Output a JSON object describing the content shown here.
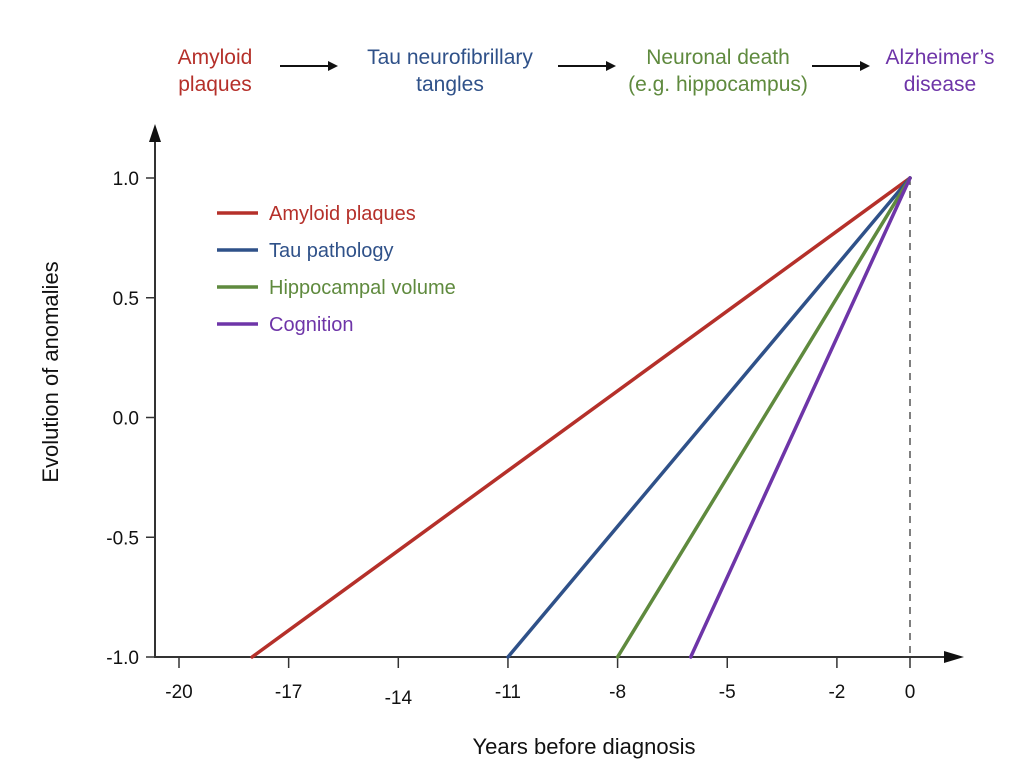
{
  "flow": {
    "stages": [
      {
        "lines": [
          "Amyloid",
          "plaques"
        ],
        "color": "#b5302a"
      },
      {
        "lines": [
          "Tau neurofibrillary",
          "tangles"
        ],
        "color": "#2f5189"
      },
      {
        "lines": [
          "Neuronal death",
          "(e.g. hippocampus)"
        ],
        "color": "#5f8a3e"
      },
      {
        "lines": [
          "Alzheimer’s",
          "disease"
        ],
        "color": "#6e35a8"
      }
    ],
    "arrow_icon": "right-arrow-icon"
  },
  "chart_data": {
    "type": "line",
    "title": "",
    "xlabel": "Years before diagnosis",
    "ylabel": "Evolution of anomalies",
    "xlim": [
      -21,
      1
    ],
    "ylim": [
      -1.0,
      1.0
    ],
    "xticks": [
      -20,
      -17,
      -14,
      -11,
      -8,
      -5,
      -2,
      0
    ],
    "xtick_labels": [
      "-20",
      "-17",
      "-14",
      "-11",
      "-8",
      "-5",
      "-2",
      "0"
    ],
    "yticks": [
      1.0,
      0.5,
      0.0,
      -0.5,
      -1.0
    ],
    "ytick_labels": [
      "1.0",
      "0.5",
      "0.0",
      "-0.5",
      "-1.0"
    ],
    "grid": false,
    "legend_position": "top-left",
    "reference_line": {
      "x": 0,
      "style": "dashed",
      "color": "#555555"
    },
    "series": [
      {
        "name": "Amyloid plaques",
        "color": "#b5302a",
        "x": [
          -18,
          0
        ],
        "y": [
          -1.0,
          1.0
        ]
      },
      {
        "name": "Tau pathology",
        "color": "#2f5189",
        "x": [
          -11,
          0
        ],
        "y": [
          -1.0,
          1.0
        ]
      },
      {
        "name": "Hippocampal volume",
        "color": "#5f8a3e",
        "x": [
          -8,
          0
        ],
        "y": [
          -1.0,
          1.0
        ]
      },
      {
        "name": "Cognition",
        "color": "#6e35a8",
        "x": [
          -6,
          0
        ],
        "y": [
          -1.0,
          1.0
        ]
      }
    ]
  }
}
